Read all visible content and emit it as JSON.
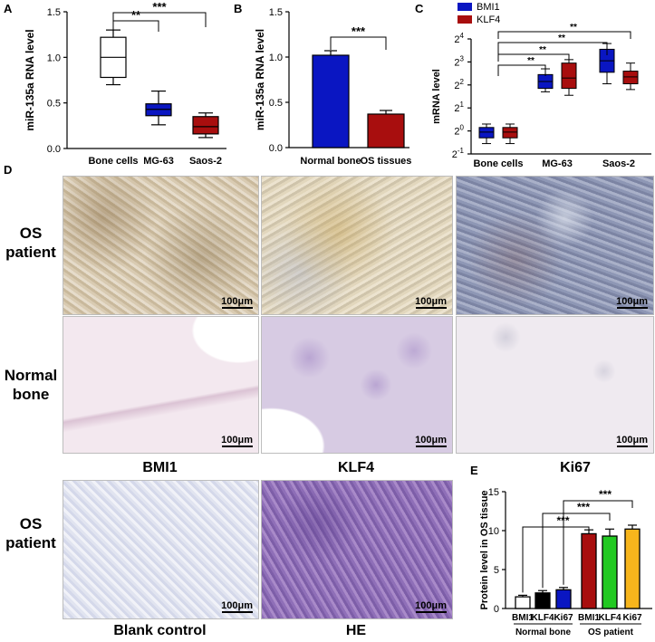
{
  "panels": {
    "A": {
      "letter": "A"
    },
    "B": {
      "letter": "B"
    },
    "C": {
      "letter": "C"
    },
    "D": {
      "letter": "D"
    },
    "E": {
      "letter": "E"
    }
  },
  "row_labels": {
    "os_patient_top": [
      "OS",
      "patient"
    ],
    "normal_bone": [
      "Normal",
      "bone"
    ],
    "os_patient_bottom": [
      "OS",
      "patient"
    ]
  },
  "col_labels": {
    "bmi1": "BMI1",
    "klf4": "KLF4",
    "ki67": "Ki67",
    "blank": "Blank control",
    "he": "HE"
  },
  "scale_label": "100μm",
  "colors": {
    "blue": "#0a16c2",
    "red": "#a80e0e",
    "green": "#22c922",
    "orange": "#f7b51c",
    "black": "#000000"
  },
  "chart_data": [
    {
      "id": "A",
      "type": "box",
      "ylabel": "miR-135a RNA level",
      "ylim": [
        0,
        1.5
      ],
      "yticks": [
        "0.0",
        "0.5",
        "1.0",
        "1.5"
      ],
      "categories": [
        "Bone cells",
        "MG-63",
        "Saos-2"
      ],
      "colors": [
        "#ffffff",
        "#0a16c2",
        "#a80e0e"
      ],
      "boxes": [
        {
          "min": 0.7,
          "q1": 0.78,
          "median": 1.0,
          "q3": 1.22,
          "max": 1.3
        },
        {
          "min": 0.26,
          "q1": 0.36,
          "median": 0.43,
          "q3": 0.49,
          "max": 0.63
        },
        {
          "min": 0.12,
          "q1": 0.16,
          "median": 0.24,
          "q3": 0.35,
          "max": 0.39
        }
      ],
      "significance": [
        {
          "from": 0,
          "to": 1,
          "label": "**"
        },
        {
          "from": 0,
          "to": 2,
          "label": "***"
        }
      ]
    },
    {
      "id": "B",
      "type": "bar",
      "ylabel": "miR-135a RNA level",
      "ylim": [
        0,
        1.5
      ],
      "yticks": [
        "0.0",
        "0.5",
        "1.0",
        "1.5"
      ],
      "categories": [
        "Normal bone",
        "OS tissues"
      ],
      "values": [
        1.02,
        0.37
      ],
      "errors": [
        0.05,
        0.04
      ],
      "colors": [
        "#0a16c2",
        "#a80e0e"
      ],
      "significance": [
        {
          "from": 0,
          "to": 1,
          "label": "***"
        }
      ]
    },
    {
      "id": "C",
      "type": "box",
      "ylabel": "mRNA level",
      "log_scale_base": 2,
      "ylim": [
        -1,
        4
      ],
      "yticks": [
        {
          "base": "2",
          "exp": "-1"
        },
        {
          "base": "2",
          "exp": "0"
        },
        {
          "base": "2",
          "exp": "1"
        },
        {
          "base": "2",
          "exp": "2"
        },
        {
          "base": "2",
          "exp": "3"
        },
        {
          "base": "2",
          "exp": "4"
        }
      ],
      "categories": [
        "Bone cells",
        "MG-63",
        "Saos-2"
      ],
      "legend": {
        "position": "top-left",
        "entries": [
          "BMI1",
          "KLF4"
        ]
      },
      "series": [
        {
          "name": "BMI1",
          "color": "#0a16c2",
          "boxes": [
            {
              "min": -0.55,
              "q1": -0.3,
              "median": -0.05,
              "q3": 0.15,
              "max": 0.3
            },
            {
              "min": 1.7,
              "q1": 1.85,
              "median": 2.15,
              "q3": 2.45,
              "max": 2.7
            },
            {
              "min": 2.05,
              "q1": 2.55,
              "median": 3.05,
              "q3": 3.55,
              "max": 3.8
            }
          ]
        },
        {
          "name": "KLF4",
          "color": "#a80e0e",
          "boxes": [
            {
              "min": -0.55,
              "q1": -0.3,
              "median": -0.05,
              "q3": 0.15,
              "max": 0.3
            },
            {
              "min": 1.55,
              "q1": 1.85,
              "median": 2.3,
              "q3": 2.95,
              "max": 3.1
            },
            {
              "min": 1.8,
              "q1": 2.05,
              "median": 2.35,
              "q3": 2.6,
              "max": 2.95
            }
          ]
        }
      ],
      "significance": [
        {
          "from": "Bone cells",
          "to": "MG-63",
          "label": "**"
        },
        {
          "from": "Bone cells",
          "to": "MG-63",
          "label": "**"
        },
        {
          "from": "Bone cells",
          "to": "Saos-2",
          "label": "**"
        },
        {
          "from": "Bone cells",
          "to": "Saos-2",
          "label": "**"
        }
      ]
    },
    {
      "id": "E",
      "type": "bar",
      "ylabel": "Protein level in OS tissue",
      "ylim": [
        0,
        15
      ],
      "yticks": [
        "0",
        "5",
        "10",
        "15"
      ],
      "categories": [
        "BMI1",
        "KLF4",
        "Ki67",
        "BMI1",
        "KLF4",
        "Ki67"
      ],
      "groups": [
        {
          "label": "Normal bone",
          "indices": [
            0,
            1,
            2
          ]
        },
        {
          "label": "OS patient",
          "indices": [
            3,
            4,
            5
          ]
        }
      ],
      "values": [
        1.5,
        2.0,
        2.4,
        9.6,
        9.3,
        10.2
      ],
      "errors": [
        0.2,
        0.3,
        0.3,
        0.5,
        0.9,
        0.5
      ],
      "colors": [
        "#ffffff",
        "#000000",
        "#0a16c2",
        "#a80e0e",
        "#22c922",
        "#f7b51c"
      ],
      "significance": [
        {
          "from": 0,
          "to": 3,
          "label": "***"
        },
        {
          "from": 1,
          "to": 4,
          "label": "***"
        },
        {
          "from": 2,
          "to": 5,
          "label": "***"
        }
      ]
    }
  ]
}
